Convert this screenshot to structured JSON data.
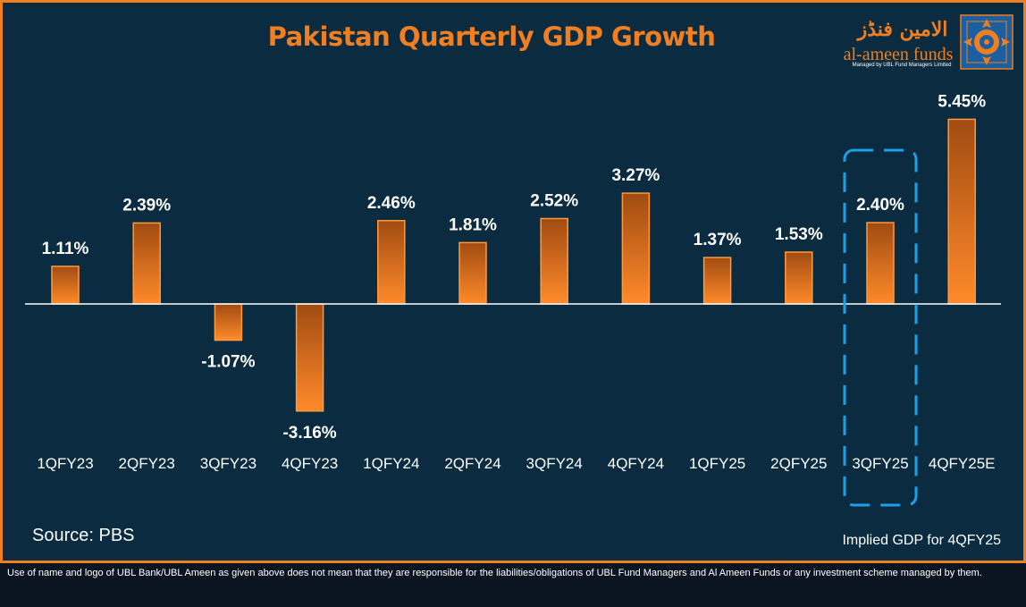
{
  "title": "Pakistan Quarterly GDP Growth",
  "logo": {
    "urdu_text": "الامین فنڈز",
    "english_text": "al-ameen funds",
    "subtext": "Managed by UBL Fund Managers Limited",
    "mark_icon": "al-ameen-ornament-icon"
  },
  "source": "Source: PBS",
  "note": "Implied GDP for 4QFY25",
  "disclaimer": "Use of name and logo of UBL Bank/UBL Ameen as given above does not mean that they are responsible for the liabilities/obligations of UBL Fund Managers and Al Ameen Funds or any investment scheme managed by them.",
  "colors": {
    "background": "#0a2b40",
    "border": "#f07f21",
    "title": "#f07f21",
    "bar_top": "#a14b12",
    "bar_bottom": "#ff8a2a",
    "highlight_box": "#1ea0e6",
    "text": "#ffffff"
  },
  "chart_data": {
    "type": "bar",
    "title": "Pakistan Quarterly GDP Growth",
    "categories": [
      "1QFY23",
      "2QFY23",
      "3QFY23",
      "4QFY23",
      "1QFY24",
      "2QFY24",
      "3QFY24",
      "4QFY24",
      "1QFY25",
      "2QFY25",
      "3QFY25",
      "4QFY25E"
    ],
    "values": [
      1.11,
      2.39,
      -1.07,
      -3.16,
      2.46,
      1.81,
      2.52,
      3.27,
      1.37,
      1.53,
      2.4,
      5.45
    ],
    "labels": [
      "1.11%",
      "2.39%",
      "-1.07%",
      "-3.16%",
      "2.46%",
      "1.81%",
      "2.52%",
      "3.27%",
      "1.37%",
      "1.53%",
      "2.40%",
      "5.45%"
    ],
    "unit": "%",
    "highlighted_category": "3QFY25",
    "grid": false,
    "legend": "none"
  }
}
